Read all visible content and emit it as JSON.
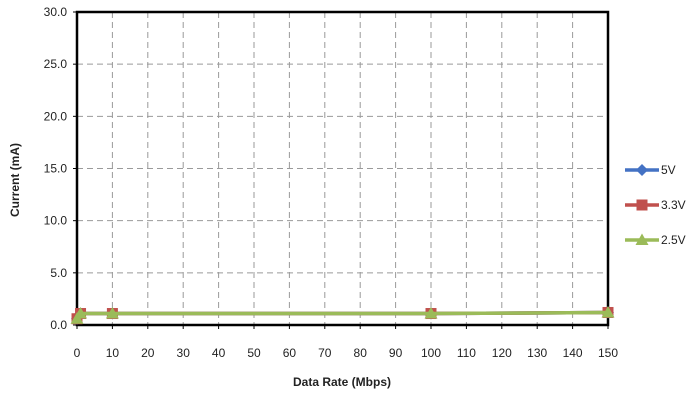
{
  "chart_data": {
    "type": "line",
    "title": "",
    "xlabel": "Data Rate (Mbps)",
    "ylabel": "Current (mA)",
    "xlim": [
      0,
      150
    ],
    "ylim": [
      0,
      30
    ],
    "x_ticks": [
      "0",
      "10",
      "20",
      "30",
      "40",
      "50",
      "60",
      "70",
      "80",
      "90",
      "100",
      "110",
      "120",
      "130",
      "140",
      "150"
    ],
    "y_ticks": [
      "0.0",
      "5.0",
      "10.0",
      "15.0",
      "20.0",
      "25.0",
      "30.0"
    ],
    "grid": true,
    "legend_position": "right",
    "series": [
      {
        "name": "5V",
        "color": "#4472C4",
        "marker": "diamond",
        "x": [
          0,
          1,
          10,
          100,
          150
        ],
        "y": [
          0.6,
          1.1,
          1.1,
          1.1,
          1.2
        ]
      },
      {
        "name": "3.3V",
        "color": "#C0504D",
        "marker": "square",
        "x": [
          0,
          1,
          10,
          100,
          150
        ],
        "y": [
          0.6,
          1.1,
          1.1,
          1.1,
          1.2
        ]
      },
      {
        "name": "2.5V",
        "color": "#9BBB59",
        "marker": "triangle",
        "x": [
          0,
          1,
          10,
          100,
          150
        ],
        "y": [
          0.6,
          1.1,
          1.1,
          1.1,
          1.2
        ]
      }
    ]
  }
}
